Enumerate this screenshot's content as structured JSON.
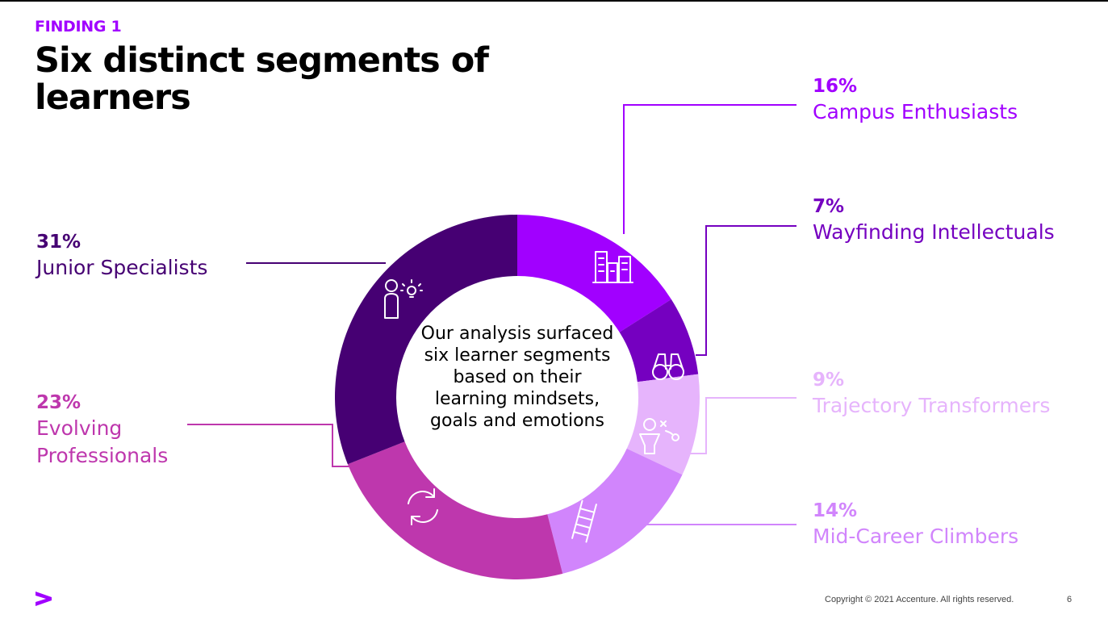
{
  "header": {
    "kicker": "FINDING 1",
    "title": "Six distinct segments of learners"
  },
  "chart_data": {
    "type": "pie",
    "style": "donut",
    "center_text": "Our analysis surfaced six learner segments based on their learning mindsets, goals and emotions",
    "slices": [
      {
        "label": "Campus Enthusiasts",
        "value": 16,
        "value_label": "16%",
        "color": "#a100ff",
        "label_color": "#a100ff",
        "icon": "buildings-icon"
      },
      {
        "label": "Wayfinding Intellectuals",
        "value": 7,
        "value_label": "7%",
        "color": "#7500c0",
        "label_color": "#7500c0",
        "icon": "binoculars-icon"
      },
      {
        "label": "Trajectory Transformers",
        "value": 9,
        "value_label": "9%",
        "color": "#e6b4fc",
        "label_color": "#e6b4fc",
        "icon": "strategy-icon"
      },
      {
        "label": "Mid-Career Climbers",
        "value": 14,
        "value_label": "14%",
        "color": "#d185fc",
        "label_color": "#d185fc",
        "icon": "ladder-icon"
      },
      {
        "label": "Evolving Professionals",
        "value": 23,
        "value_label": "23%",
        "color": "#be37ad",
        "label_color": "#be37ad",
        "icon": "refresh-icon"
      },
      {
        "label": "Junior Specialists",
        "value": 31,
        "value_label": "31%",
        "color": "#460073",
        "label_color": "#460073",
        "icon": "person-lightbulb-icon"
      }
    ]
  },
  "footer": {
    "copyright": "Copyright © 2021 Accenture. All rights reserved.",
    "page_number": "6",
    "logo": "accenture-arrow-logo",
    "logo_color": "#a100ff"
  }
}
